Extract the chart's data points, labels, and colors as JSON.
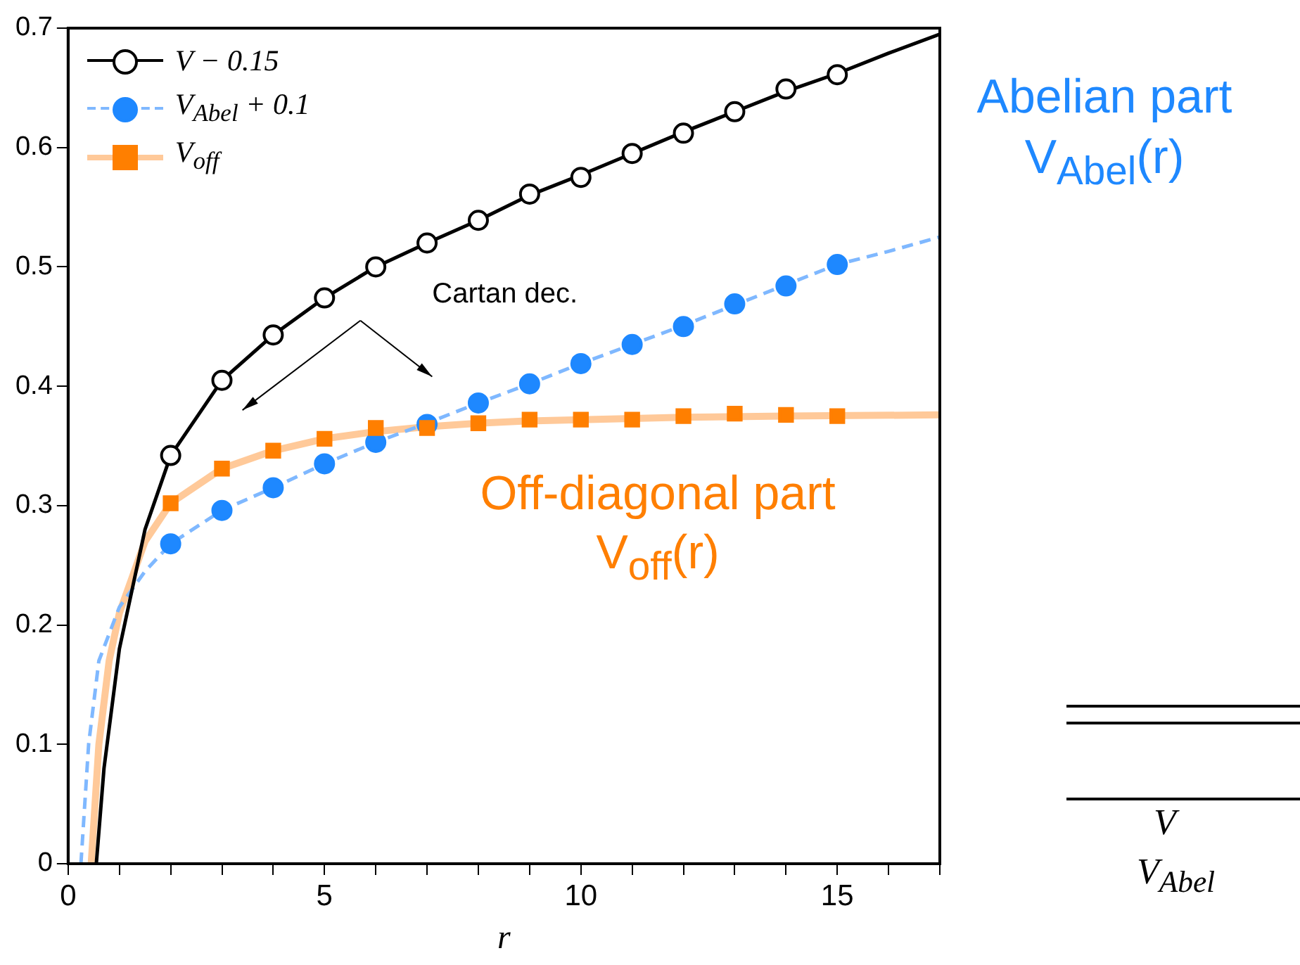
{
  "chart_data": {
    "type": "line",
    "xlabel": "r",
    "xlim": [
      0,
      17
    ],
    "xticks": [
      0,
      {
        "value": 1,
        "label": null
      },
      {
        "value": 2,
        "label": null
      },
      {
        "value": 3,
        "label": null
      },
      {
        "value": 4,
        "label": null
      },
      5,
      {
        "value": 6,
        "label": null
      },
      {
        "value": 7,
        "label": null
      },
      {
        "value": 8,
        "label": null
      },
      {
        "value": 9,
        "label": null
      },
      10,
      {
        "value": 11,
        "label": null
      },
      {
        "value": 12,
        "label": null
      },
      {
        "value": 13,
        "label": null
      },
      {
        "value": 14,
        "label": null
      },
      15,
      {
        "value": 16,
        "label": null
      },
      {
        "value": 17,
        "label": null
      }
    ],
    "ylim": [
      0,
      0.7
    ],
    "yticks": [
      0,
      0.1,
      0.2,
      0.3,
      0.4,
      0.5,
      0.6,
      0.7
    ],
    "grid": false,
    "legend": "top left",
    "series": [
      {
        "name": "V − 0.15",
        "color": "#000000",
        "type": "scatter",
        "marker": "circle",
        "x": [
          2,
          3,
          4,
          5,
          6,
          7,
          8,
          9,
          10,
          11,
          12,
          13,
          14,
          15
        ],
        "values": [
          0.342,
          0.405,
          0.443,
          0.474,
          0.5,
          0.52,
          0.539,
          0.561,
          0.575,
          0.595,
          0.612,
          0.63,
          0.649,
          0.661
        ]
      },
      {
        "name": "V$_{Abel}$ + 0.1",
        "color": "#1e88ff",
        "type": "scatter",
        "marker": "circle",
        "x": [
          2,
          3,
          4,
          5,
          6,
          7,
          8,
          9,
          10,
          11,
          12,
          13,
          14,
          15
        ],
        "values": [
          0.268,
          0.296,
          0.315,
          0.335,
          0.353,
          0.368,
          0.386,
          0.402,
          0.419,
          0.435,
          0.45,
          0.469,
          0.484,
          0.502
        ]
      },
      {
        "name": "V$_{off}$",
        "color": "#ff7f00",
        "type": "scatter",
        "marker": "square",
        "x": [
          2,
          3,
          4,
          5,
          6,
          7,
          8,
          9,
          10,
          11,
          12,
          13,
          14,
          15
        ],
        "values": [
          0.302,
          0.331,
          0.346,
          0.356,
          0.365,
          0.365,
          0.369,
          0.372,
          0.372,
          0.372,
          0.375,
          0.377,
          0.376,
          0.375
        ]
      },
      {
        "color": "#000000",
        "type": "line",
        "marker": "none",
        "line_style": "solid",
        "x": [
          0.55,
          0.7,
          1,
          1.5,
          2,
          3,
          4,
          5,
          6,
          7,
          8,
          9,
          10,
          11,
          12,
          13,
          14,
          15,
          16,
          17
        ],
        "values": [
          0,
          0.08,
          0.18,
          0.28,
          0.342,
          0.405,
          0.443,
          0.474,
          0.5,
          0.52,
          0.539,
          0.56,
          0.577,
          0.595,
          0.613,
          0.63,
          0.647,
          0.662,
          0.679,
          0.695
        ]
      },
      {
        "color": "#7fb8ff",
        "type": "line",
        "marker": "none",
        "line_style": "dashed",
        "x": [
          0.25,
          0.4,
          0.6,
          1,
          1.5,
          2,
          3,
          4,
          5,
          6,
          7,
          8,
          9,
          10,
          11,
          12,
          13,
          14,
          15,
          16,
          17
        ],
        "values": [
          0,
          0.1,
          0.17,
          0.215,
          0.245,
          0.268,
          0.296,
          0.315,
          0.335,
          0.353,
          0.369,
          0.386,
          0.402,
          0.419,
          0.435,
          0.451,
          0.468,
          0.485,
          0.502,
          0.513,
          0.525
        ]
      },
      {
        "color": "#ffc999",
        "type": "line",
        "marker": "none",
        "line_style": "solid",
        "x": [
          0.45,
          0.6,
          0.8,
          1,
          1.5,
          2,
          3,
          4,
          5,
          6,
          7,
          8,
          9,
          10,
          12,
          14,
          17
        ],
        "values": [
          0,
          0.1,
          0.17,
          0.21,
          0.27,
          0.302,
          0.331,
          0.346,
          0.356,
          0.362,
          0.366,
          0.369,
          0.371,
          0.372,
          0.374,
          0.375,
          0.376
        ]
      }
    ],
    "annotations": [
      "Cartan dec.",
      "Off-diagonal part V$_{off}$(r)",
      "Abelian part V$_{Abel}$(r)",
      "V",
      "V$_{Abel}$"
    ]
  }
}
